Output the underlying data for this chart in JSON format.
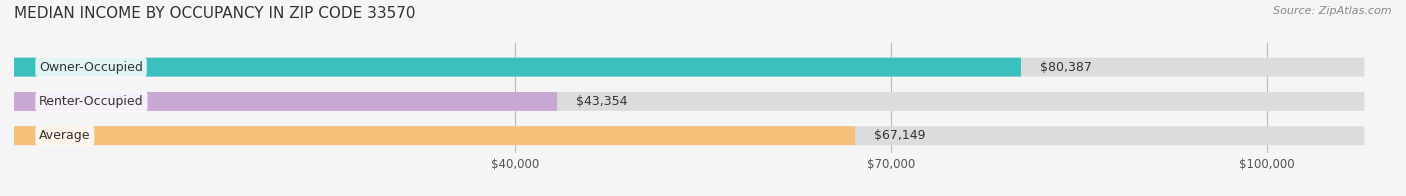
{
  "title": "MEDIAN INCOME BY OCCUPANCY IN ZIP CODE 33570",
  "source": "Source: ZipAtlas.com",
  "categories": [
    "Owner-Occupied",
    "Renter-Occupied",
    "Average"
  ],
  "values": [
    80387,
    43354,
    67149
  ],
  "bar_colors": [
    "#3bbfbf",
    "#c9a8d4",
    "#f5c07a"
  ],
  "bar_bg_color": "#e8e8e8",
  "value_labels": [
    "$80,387",
    "$43,354",
    "$67,149"
  ],
  "x_ticks": [
    40000,
    70000,
    100000
  ],
  "x_tick_labels": [
    "$40,000",
    "$70,000",
    "$100,000"
  ],
  "xlim": [
    0,
    110000
  ],
  "title_fontsize": 11,
  "label_fontsize": 9,
  "tick_fontsize": 8.5,
  "source_fontsize": 8
}
